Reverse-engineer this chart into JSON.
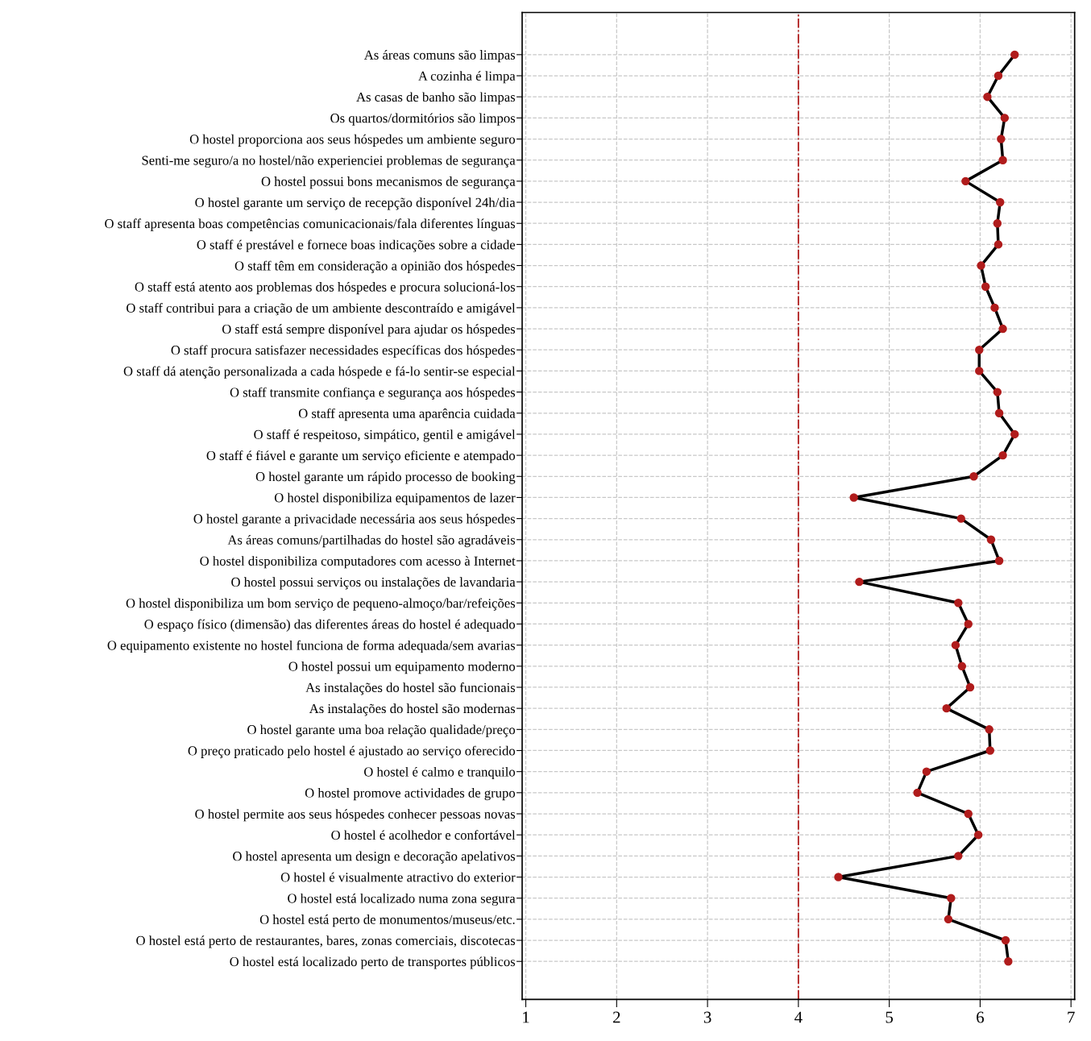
{
  "chart_data": {
    "type": "line",
    "categories": [
      "As áreas comuns são limpas",
      "A cozinha é limpa",
      "As casas de banho são limpas",
      "Os quartos/dormitórios são limpos",
      "O hostel proporciona aos seus hóspedes um ambiente seguro",
      "Senti-me seguro/a no hostel/não experienciei problemas de segurança",
      "O hostel possui bons mecanismos de segurança",
      "O hostel garante um serviço de recepção disponível 24h/dia",
      "O staff apresenta boas competências comunicacionais/fala diferentes línguas",
      "O staff é prestável e fornece boas indicações sobre a cidade",
      "O staff têm em consideração a opinião dos hóspedes",
      "O staff está atento aos problemas dos hóspedes e procura solucioná-los",
      "O staff contribui para a criação de um ambiente descontraído e amigável",
      "O staff está sempre disponível para ajudar os hóspedes",
      "O staff procura satisfazer necessidades específicas dos hóspedes",
      "O staff dá atenção personalizada a cada hóspede e fá-lo sentir-se especial",
      "O staff transmite confiança e segurança aos hóspedes",
      "O staff apresenta uma aparência cuidada",
      "O staff é respeitoso, simpático, gentil e amigável",
      "O staff é fiável e garante um serviço eficiente e atempado",
      "O hostel garante um rápido processo de booking",
      "O hostel disponibiliza equipamentos de lazer",
      "O hostel garante a privacidade necessária aos seus hóspedes",
      "As áreas comuns/partilhadas do hostel são agradáveis",
      "O hostel disponibiliza computadores com acesso à Internet",
      "O hostel possui serviços ou instalações de lavandaria",
      "O hostel disponibiliza um bom serviço de pequeno-almoço/bar/refeições",
      "O espaço físico (dimensão) das diferentes áreas do hostel é adequado",
      "O equipamento existente no hostel funciona de forma adequada/sem avarias",
      "O hostel possui um equipamento moderno",
      "As instalações do hostel são funcionais",
      "As instalações do hostel são modernas",
      "O hostel garante uma boa relação qualidade/preço",
      "O preço praticado pelo hostel é ajustado ao serviço oferecido",
      "O hostel é calmo e tranquilo",
      "O hostel promove actividades de grupo",
      "O hostel permite aos seus hóspedes conhecer pessoas novas",
      "O hostel é acolhedor e confortável",
      "O hostel apresenta um design e decoração apelativos",
      "O hostel é visualmente atractivo do exterior",
      "O hostel está localizado numa zona segura",
      "O hostel está perto de monumentos/museus/etc.",
      "O hostel está perto de restaurantes, bares, zonas comerciais, discotecas",
      "O hostel está localizado perto de transportes públicos"
    ],
    "orientation": "horizontal",
    "series": [
      {
        "color": "#b01c1c",
        "values": [
          6.38,
          6.2,
          6.08,
          6.27,
          6.23,
          6.25,
          5.84,
          6.22,
          6.19,
          6.2,
          6.01,
          6.06,
          6.16,
          6.25,
          5.99,
          5.99,
          6.19,
          6.21,
          6.38,
          6.25,
          5.93,
          4.61,
          5.79,
          6.12,
          6.21,
          4.67,
          5.76,
          5.87,
          5.73,
          5.8,
          5.89,
          5.63,
          6.1,
          6.11,
          5.41,
          5.31,
          5.87,
          5.98,
          5.76,
          4.44,
          5.68,
          5.65,
          6.28,
          6.31
        ]
      }
    ],
    "xlim": [
      0.96,
      7.04
    ],
    "xticks": [
      1,
      2,
      3,
      4,
      5,
      6,
      7
    ],
    "ref_lines": [
      {
        "axis": "x",
        "value": 4,
        "color": "#b01c1c",
        "line_style": "dashdot"
      }
    ],
    "grid": true,
    "marker": "circle",
    "line_style": "solid"
  }
}
